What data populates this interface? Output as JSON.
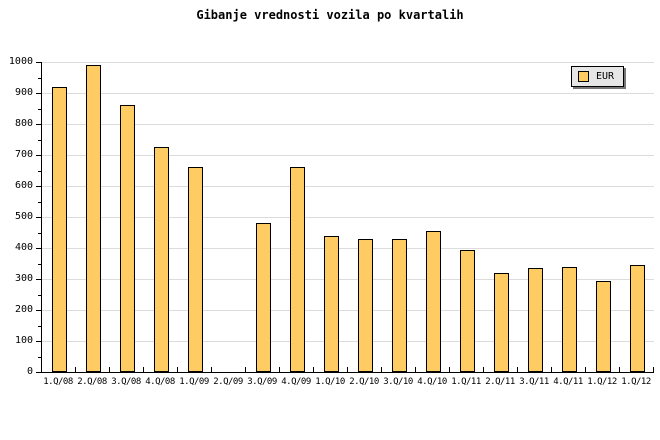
{
  "chart_data": {
    "type": "bar",
    "title": "Gibanje vrednosti vozila po kvartalih",
    "series_name": "EUR",
    "categories": [
      "1.Q/08",
      "2.Q/08",
      "3.Q/08",
      "4.Q/08",
      "1.Q/09",
      "2.Q/09",
      "3.Q/09",
      "4.Q/09",
      "1.Q/10",
      "2.Q/10",
      "3.Q/10",
      "4.Q/10",
      "1.Q/11",
      "2.Q/11",
      "3.Q/11",
      "4.Q/11",
      "1.Q/12",
      "1.Q/12"
    ],
    "values": [
      920,
      990,
      860,
      725,
      660,
      null,
      480,
      660,
      440,
      430,
      430,
      455,
      395,
      320,
      335,
      340,
      295,
      345
    ],
    "ylim": [
      0,
      1000
    ],
    "ytick_step": 100,
    "yminor_step": 50,
    "ytick_labels": [
      "0",
      "100",
      "200",
      "300",
      "400",
      "500",
      "600",
      "700",
      "800",
      "900",
      "1000"
    ],
    "grid": true,
    "legend_position": "top-right",
    "bar_color": "#FFCB63",
    "bar_border": "#000000",
    "grid_color": "#DCDCDC"
  }
}
